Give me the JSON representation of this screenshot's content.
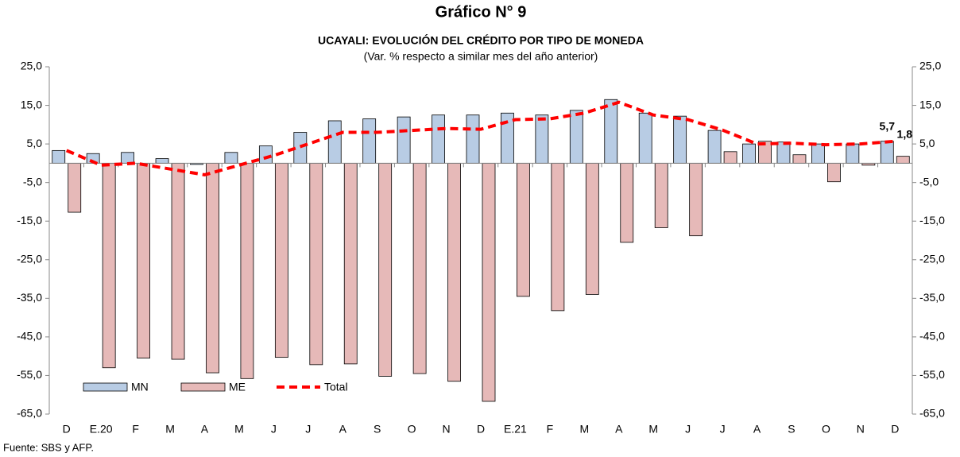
{
  "chart_data": {
    "type": "bar",
    "title": "Gráfico N° 9",
    "subtitle": "UCAYALI: EVOLUCIÓN DEL CRÉDITO POR TIPO DE MONEDA",
    "note": "(Var. % respecto a similar mes del año anterior)",
    "source": "Fuente: SBS y AFP.",
    "categories": [
      "D",
      "E.20",
      "F",
      "M",
      "A",
      "M",
      "J",
      "J",
      "A",
      "S",
      "O",
      "N",
      "D",
      "E.21",
      "F",
      "M",
      "A",
      "M",
      "J",
      "J",
      "A",
      "S",
      "O",
      "N",
      "D"
    ],
    "series": [
      {
        "name": "MN",
        "type": "bar",
        "color": "#b8cce4",
        "values": [
          3.3,
          2.5,
          2.8,
          1.2,
          -0.3,
          2.8,
          4.5,
          8.0,
          11.0,
          11.5,
          12.0,
          12.5,
          12.5,
          13.0,
          12.5,
          13.7,
          16.5,
          13.0,
          12.2,
          8.5,
          5.0,
          5.5,
          5.0,
          5.0,
          5.7
        ],
        "value_labels": [
          null,
          null,
          null,
          null,
          null,
          null,
          null,
          null,
          null,
          null,
          null,
          null,
          null,
          null,
          null,
          null,
          null,
          null,
          null,
          null,
          null,
          null,
          null,
          null,
          "5,7"
        ]
      },
      {
        "name": "ME",
        "type": "bar",
        "color": "#e6b9b8",
        "values": [
          -12.7,
          -53.0,
          -50.5,
          -50.8,
          -54.3,
          -55.8,
          -50.3,
          -52.2,
          -52.0,
          -55.2,
          -54.5,
          -56.5,
          -61.7,
          -34.5,
          -38.2,
          -34.0,
          -20.5,
          -16.7,
          -18.8,
          3.0,
          5.7,
          2.2,
          -4.8,
          -0.5,
          1.8
        ],
        "value_labels": [
          null,
          null,
          null,
          null,
          null,
          null,
          null,
          null,
          null,
          null,
          null,
          null,
          null,
          null,
          null,
          null,
          null,
          null,
          null,
          null,
          null,
          null,
          null,
          null,
          "1,8"
        ]
      },
      {
        "name": "Total",
        "type": "line",
        "color": "#ff0000",
        "values": [
          3.3,
          -0.5,
          0.0,
          -1.5,
          -3.0,
          -0.5,
          2.0,
          5.0,
          8.0,
          8.0,
          8.5,
          9.0,
          8.8,
          11.3,
          11.5,
          13.0,
          15.8,
          12.5,
          11.3,
          8.6,
          5.0,
          5.2,
          4.8,
          5.0,
          5.7
        ]
      }
    ],
    "ylim": [
      -65,
      25
    ],
    "yticks": [
      {
        "value": 25,
        "label": "25,0"
      },
      {
        "value": 15,
        "label": "15,0"
      },
      {
        "value": 5,
        "label": "5,0"
      },
      {
        "value": -5,
        "label": "-5,0"
      },
      {
        "value": -15,
        "label": "-15,0"
      },
      {
        "value": -25,
        "label": "-25,0"
      },
      {
        "value": -35,
        "label": "-35,0"
      },
      {
        "value": -45,
        "label": "-45,0"
      },
      {
        "value": -55,
        "label": "-55,0"
      },
      {
        "value": -65,
        "label": "-65,0"
      }
    ],
    "y2lim": [
      -65,
      25
    ],
    "y2ticks": [
      {
        "value": 25,
        "label": "25,0"
      },
      {
        "value": 15,
        "label": "15,0"
      },
      {
        "value": 5,
        "label": "5,0"
      },
      {
        "value": -5,
        "label": "-5,0"
      },
      {
        "value": -15,
        "label": "-15,0"
      },
      {
        "value": -25,
        "label": "-25,0"
      },
      {
        "value": -35,
        "label": "-35,0"
      },
      {
        "value": -45,
        "label": "-45,0"
      },
      {
        "value": -55,
        "label": "-55,0"
      },
      {
        "value": -65,
        "label": "-65,0"
      }
    ],
    "legend": "lower-left",
    "grid": false
  }
}
